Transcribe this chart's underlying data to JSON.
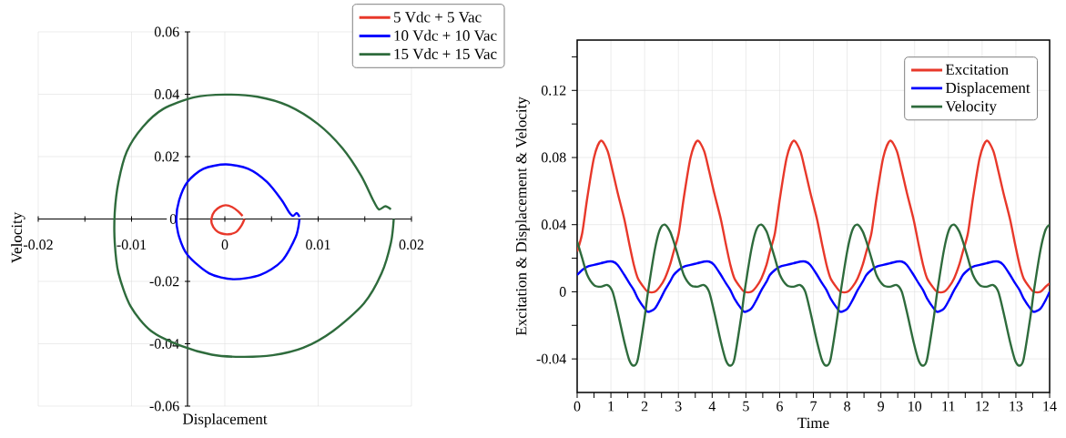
{
  "chart_data": [
    {
      "type": "line",
      "xlabel": "Displacement",
      "ylabel": "Velocity",
      "xlim": [
        -0.02,
        0.02
      ],
      "ylim": [
        -0.06,
        0.06
      ],
      "xticks": [
        -0.02,
        {
          "value": -0.015,
          "label": null
        },
        -0.01,
        {
          "value": -0.005,
          "label": null
        },
        0,
        {
          "value": 0.005,
          "label": null
        },
        0.01,
        {
          "value": 0.015,
          "label": null
        },
        0.02
      ],
      "yticks": [
        -0.06,
        -0.04,
        -0.02,
        0,
        0.02,
        0.04,
        0.06
      ],
      "grid": true,
      "legend": "top right",
      "series": [
        {
          "name": "5 Vdc + 5 Vac",
          "color": "#e8382a",
          "x": [
            0.0021,
            0.0018,
            0.0012,
            0.0004,
            -0.0004,
            -0.001,
            -0.0014,
            -0.0014,
            -0.0011,
            -0.0005,
            0.0001,
            0.0008,
            0.0014,
            0.0019
          ],
          "values": [
            0,
            -0.002,
            -0.0042,
            -0.0049,
            -0.0046,
            -0.0035,
            -0.0015,
            0.0005,
            0.0025,
            0.0039,
            0.0044,
            0.0038,
            0.0025,
            0.001
          ]
        },
        {
          "name": "10 Vdc + 10 Vac",
          "color": "#0000ff",
          "x": [
            0.008,
            0.0076,
            0.0061,
            0.0038,
            0.0009,
            -0.0017,
            -0.004,
            -0.0049,
            -0.0052,
            -0.0049,
            -0.004,
            -0.0023,
            0.0001,
            0.0025,
            0.0045,
            0.0061,
            0.0069,
            0.0073,
            0.0077,
            0.008
          ],
          "values": [
            0,
            -0.0057,
            -0.0135,
            -0.0179,
            -0.0193,
            -0.0174,
            -0.0115,
            -0.0057,
            0,
            0.006,
            0.0119,
            0.0161,
            0.0175,
            0.0161,
            0.0119,
            0.006,
            0.0021,
            0.001,
            0.0019,
            0.0007
          ]
        },
        {
          "name": "15 Vdc + 15 Vac",
          "color": "#2e6b3c",
          "x": [
            0.0181,
            0.0178,
            0.0168,
            0.0149,
            0.0116,
            0.0084,
            0.0051,
            0.0017,
            -0.0014,
            -0.0046,
            -0.0079,
            -0.0101,
            -0.0114,
            -0.0118,
            -0.0118,
            -0.0114,
            -0.0105,
            -0.0088,
            -0.0066,
            -0.0033,
            0,
            0.0035,
            0.0068,
            0.01,
            0.0126,
            0.0146,
            0.0159,
            0.0165,
            0.0172,
            0.0178
          ],
          "values": [
            0,
            -0.0076,
            -0.0174,
            -0.0271,
            -0.0359,
            -0.0413,
            -0.0437,
            -0.0442,
            -0.0435,
            -0.0408,
            -0.0359,
            -0.028,
            -0.0174,
            -0.0076,
            0.0021,
            0.0119,
            0.0217,
            0.0295,
            0.0353,
            0.039,
            0.0399,
            0.0392,
            0.0363,
            0.0304,
            0.0227,
            0.0139,
            0.006,
            0.0031,
            0.0041,
            0.0031
          ]
        }
      ]
    },
    {
      "type": "line",
      "xlabel": "Time",
      "ylabel": "Excitation & Displacement & Velocity",
      "xlim": [
        0,
        14
      ],
      "ylim": [
        -0.06,
        0.15
      ],
      "xticks": [
        0,
        {
          "value": 0.5,
          "label": null
        },
        1,
        {
          "value": 1.5,
          "label": null
        },
        2,
        {
          "value": 2.5,
          "label": null
        },
        3,
        {
          "value": 3.5,
          "label": null
        },
        4,
        {
          "value": 4.5,
          "label": null
        },
        5,
        {
          "value": 5.5,
          "label": null
        },
        6,
        {
          "value": 6.5,
          "label": null
        },
        7,
        {
          "value": 7.5,
          "label": null
        },
        8,
        {
          "value": 8.5,
          "label": null
        },
        9,
        {
          "value": 9.5,
          "label": null
        },
        10,
        {
          "value": 10.5,
          "label": null
        },
        11,
        {
          "value": 11.5,
          "label": null
        },
        12,
        {
          "value": 12.5,
          "label": null
        },
        13,
        {
          "value": 13.5,
          "label": null
        },
        14
      ],
      "yticks": [
        -0.04,
        {
          "value": -0.02,
          "label": null
        },
        0,
        {
          "value": 0.02,
          "label": null
        },
        0.04,
        {
          "value": 0.06,
          "label": null
        },
        0.08,
        {
          "value": 0.1,
          "label": null
        },
        0.12,
        {
          "value": 0.14,
          "label": null
        }
      ],
      "grid": true,
      "legend": "top right",
      "x": [
        0,
        0.15,
        0.3,
        0.5,
        0.7,
        0.9,
        1.05,
        1.2,
        1.4,
        1.55,
        1.68,
        1.8,
        2.0,
        2.1,
        2.3,
        2.45,
        2.6,
        2.75,
        2.86,
        3.01,
        3.16,
        3.36,
        3.56,
        3.76,
        3.91,
        4.06,
        4.26,
        4.41,
        4.54,
        4.66,
        4.86,
        4.96,
        5.16,
        5.31,
        5.46,
        5.61,
        5.71,
        5.86,
        6.01,
        6.21,
        6.41,
        6.61,
        6.76,
        6.91,
        7.11,
        7.26,
        7.39,
        7.51,
        7.71,
        7.81,
        8.01,
        8.16,
        8.31,
        8.46,
        8.57,
        8.72,
        8.87,
        9.07,
        9.27,
        9.47,
        9.62,
        9.77,
        9.97,
        10.12,
        10.25,
        10.37,
        10.57,
        10.67,
        10.87,
        11.02,
        11.17,
        11.32,
        11.43,
        11.58,
        11.73,
        11.93,
        12.13,
        12.33,
        12.48,
        12.63,
        12.83,
        12.98,
        13.11,
        13.23,
        13.43,
        13.53,
        13.73,
        13.88,
        14
      ],
      "series": [
        {
          "name": "Excitation",
          "color": "#e8382a",
          "values": [
            0.024,
            0.035,
            0.056,
            0.08,
            0.09,
            0.084,
            0.072,
            0.059,
            0.043,
            0.028,
            0.016,
            0.008,
            0.002,
            0,
            0,
            0.003,
            0.008,
            0.016,
            0.024,
            0.035,
            0.056,
            0.08,
            0.09,
            0.084,
            0.072,
            0.059,
            0.043,
            0.028,
            0.016,
            0.008,
            0.002,
            0,
            0,
            0.003,
            0.008,
            0.016,
            0.024,
            0.035,
            0.056,
            0.08,
            0.09,
            0.084,
            0.072,
            0.059,
            0.043,
            0.028,
            0.016,
            0.008,
            0.002,
            0,
            0,
            0.003,
            0.008,
            0.016,
            0.024,
            0.035,
            0.056,
            0.08,
            0.09,
            0.084,
            0.072,
            0.059,
            0.043,
            0.028,
            0.016,
            0.008,
            0.002,
            0,
            0,
            0.003,
            0.008,
            0.016,
            0.024,
            0.035,
            0.056,
            0.08,
            0.09,
            0.084,
            0.072,
            0.059,
            0.043,
            0.028,
            0.016,
            0.008,
            0.002,
            0,
            0,
            0.003,
            0.005
          ]
        },
        {
          "name": "Displacement",
          "color": "#0000ff",
          "values": [
            0.01,
            0.013,
            0.015,
            0.016,
            0.017,
            0.018,
            0.018,
            0.016,
            0.01,
            0.005,
            0.001,
            -0.004,
            -0.01,
            -0.012,
            -0.01,
            -0.005,
            0.001,
            0.006,
            0.01,
            0.013,
            0.015,
            0.016,
            0.017,
            0.018,
            0.018,
            0.016,
            0.01,
            0.005,
            0.001,
            -0.004,
            -0.01,
            -0.012,
            -0.01,
            -0.005,
            0.001,
            0.006,
            0.01,
            0.013,
            0.015,
            0.016,
            0.017,
            0.018,
            0.018,
            0.016,
            0.01,
            0.005,
            0.001,
            -0.004,
            -0.01,
            -0.012,
            -0.01,
            -0.005,
            0.001,
            0.006,
            0.01,
            0.013,
            0.015,
            0.016,
            0.017,
            0.018,
            0.018,
            0.016,
            0.01,
            0.005,
            0.001,
            -0.004,
            -0.01,
            -0.012,
            -0.01,
            -0.005,
            0.001,
            0.006,
            0.01,
            0.013,
            0.015,
            0.016,
            0.017,
            0.018,
            0.018,
            0.016,
            0.01,
            0.005,
            0.001,
            -0.004,
            -0.01,
            -0.012,
            -0.01,
            -0.005,
            0
          ]
        },
        {
          "name": "Velocity",
          "color": "#2e6b3c",
          "values": [
            0.03,
            0.02,
            0.01,
            0.004,
            0.003,
            0.004,
            0,
            -0.012,
            -0.03,
            -0.041,
            -0.044,
            -0.04,
            -0.015,
            0,
            0.025,
            0.037,
            0.04,
            0.036,
            0.03,
            0.02,
            0.01,
            0.004,
            0.003,
            0.004,
            0,
            -0.012,
            -0.03,
            -0.041,
            -0.044,
            -0.04,
            -0.015,
            0,
            0.025,
            0.037,
            0.04,
            0.036,
            0.03,
            0.02,
            0.01,
            0.004,
            0.003,
            0.004,
            0,
            -0.012,
            -0.03,
            -0.041,
            -0.044,
            -0.04,
            -0.015,
            0,
            0.025,
            0.037,
            0.04,
            0.036,
            0.03,
            0.02,
            0.01,
            0.004,
            0.003,
            0.004,
            0,
            -0.012,
            -0.03,
            -0.041,
            -0.044,
            -0.04,
            -0.015,
            0,
            0.025,
            0.037,
            0.04,
            0.036,
            0.03,
            0.02,
            0.01,
            0.004,
            0.003,
            0.004,
            0,
            -0.012,
            -0.03,
            -0.041,
            -0.044,
            -0.04,
            -0.015,
            0,
            0.025,
            0.037,
            0.04
          ]
        }
      ]
    }
  ]
}
